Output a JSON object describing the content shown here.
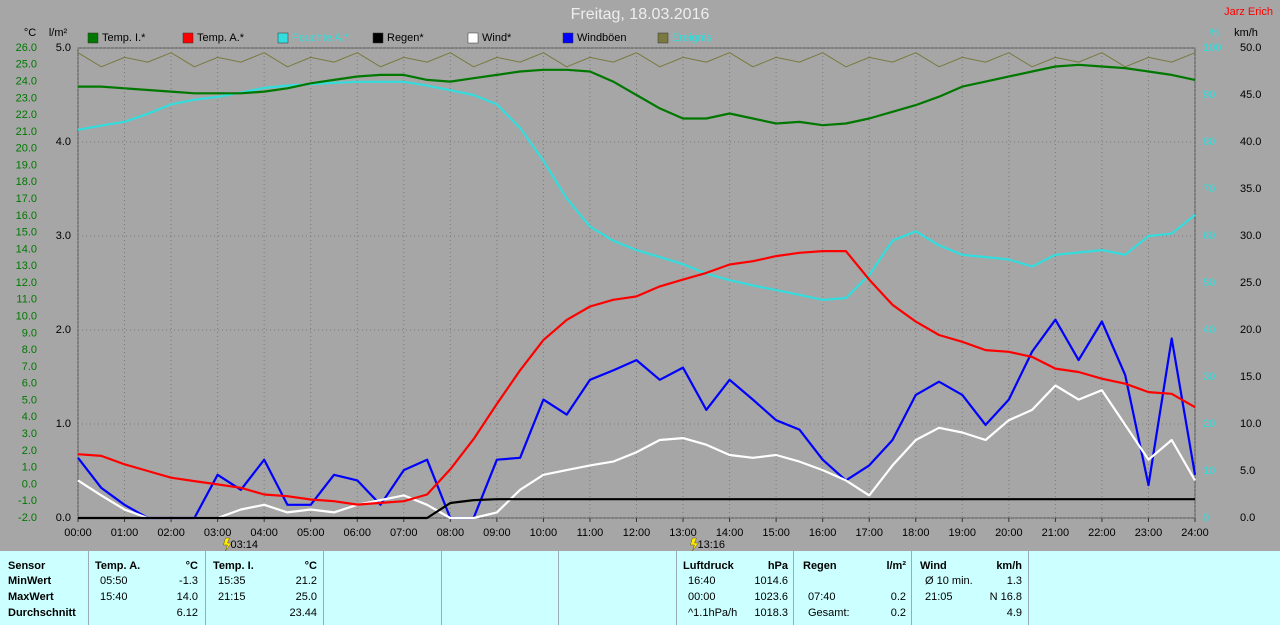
{
  "chart_data": {
    "type": "line",
    "title": "Freitag, 18.03.2016",
    "author": "Jarz Erich",
    "axis_units": {
      "y": "°C",
      "y3": "l/m²",
      "y4": "%",
      "y2": "km/h"
    },
    "x": [
      0,
      0.5,
      1,
      1.5,
      2,
      2.5,
      3,
      3.5,
      4,
      4.5,
      5,
      5.5,
      6,
      6.5,
      7,
      7.5,
      8,
      8.5,
      9,
      9.5,
      10,
      10.5,
      11,
      11.5,
      12,
      12.5,
      13,
      13.5,
      14,
      14.5,
      15,
      15.5,
      16,
      16.5,
      17,
      17.5,
      18,
      18.5,
      19,
      19.5,
      20,
      20.5,
      21,
      21.5,
      22,
      22.5,
      23,
      23.5,
      24
    ],
    "xlim": [
      0,
      24
    ],
    "xticks": [
      {
        "value": 0,
        "label": "00:00"
      },
      {
        "value": 1,
        "label": "01:00"
      },
      {
        "value": 2,
        "label": "02:00"
      },
      {
        "value": 3,
        "label": "03:00"
      },
      {
        "value": 4,
        "label": "04:00"
      },
      {
        "value": 5,
        "label": "05:00"
      },
      {
        "value": 6,
        "label": "06:00"
      },
      {
        "value": 7,
        "label": "07:00"
      },
      {
        "value": 8,
        "label": "08:00"
      },
      {
        "value": 9,
        "label": "09:00"
      },
      {
        "value": 10,
        "label": "10:00"
      },
      {
        "value": 11,
        "label": "11:00"
      },
      {
        "value": 12,
        "label": "12:00"
      },
      {
        "value": 13,
        "label": "13:00"
      },
      {
        "value": 14,
        "label": "14:00"
      },
      {
        "value": 15,
        "label": "15:00"
      },
      {
        "value": 16,
        "label": "16:00"
      },
      {
        "value": 17,
        "label": "17:00"
      },
      {
        "value": 18,
        "label": "18:00"
      },
      {
        "value": 19,
        "label": "19:00"
      },
      {
        "value": 20,
        "label": "20:00"
      },
      {
        "value": 21,
        "label": "21:00"
      },
      {
        "value": 22,
        "label": "22:00"
      },
      {
        "value": 23,
        "label": "23:00"
      },
      {
        "value": 24,
        "label": "24:00"
      }
    ],
    "ylim": [
      -2,
      26
    ],
    "yticks": [
      {
        "value": 26,
        "label": "26.0"
      },
      {
        "value": 25,
        "label": "25.0"
      },
      {
        "value": 24,
        "label": "24.0"
      },
      {
        "value": 23,
        "label": "23.0"
      },
      {
        "value": 22,
        "label": "22.0"
      },
      {
        "value": 21,
        "label": "21.0"
      },
      {
        "value": 20,
        "label": "20.0"
      },
      {
        "value": 19,
        "label": "19.0"
      },
      {
        "value": 18,
        "label": "18.0"
      },
      {
        "value": 17,
        "label": "17.0"
      },
      {
        "value": 16,
        "label": "16.0"
      },
      {
        "value": 15,
        "label": "15.0"
      },
      {
        "value": 14,
        "label": "14.0"
      },
      {
        "value": 13,
        "label": "13.0"
      },
      {
        "value": 12,
        "label": "12.0"
      },
      {
        "value": 11,
        "label": "11.0"
      },
      {
        "value": 10,
        "label": "10.0"
      },
      {
        "value": 9,
        "label": "9.0"
      },
      {
        "value": 8,
        "label": "8.0"
      },
      {
        "value": 7,
        "label": "7.0"
      },
      {
        "value": 6,
        "label": "6.0"
      },
      {
        "value": 5,
        "label": "5.0"
      },
      {
        "value": 4,
        "label": "4.0"
      },
      {
        "value": 3,
        "label": "3.0"
      },
      {
        "value": 2,
        "label": "2.0"
      },
      {
        "value": 1,
        "label": "1.0"
      },
      {
        "value": 0,
        "label": "0.0"
      },
      {
        "value": -1,
        "label": "-1.0"
      },
      {
        "value": -2,
        "label": "-2.0"
      }
    ],
    "y2lim": [
      0,
      50
    ],
    "y2ticks": [
      {
        "value": 50,
        "label": "50.0"
      },
      {
        "value": 45,
        "label": "45.0"
      },
      {
        "value": 40,
        "label": "40.0"
      },
      {
        "value": 35,
        "label": "35.0"
      },
      {
        "value": 30,
        "label": "30.0"
      },
      {
        "value": 25,
        "label": "25.0"
      },
      {
        "value": 20,
        "label": "20.0"
      },
      {
        "value": 15,
        "label": "15.0"
      },
      {
        "value": 10,
        "label": "10.0"
      },
      {
        "value": 5,
        "label": "5.0"
      },
      {
        "value": 0,
        "label": "0.0"
      }
    ],
    "y3lim": [
      0,
      5
    ],
    "y3ticks": [
      {
        "value": 5,
        "label": "5.0"
      },
      {
        "value": 4,
        "label": "4.0"
      },
      {
        "value": 3,
        "label": "3.0"
      },
      {
        "value": 2,
        "label": "2.0"
      },
      {
        "value": 1,
        "label": "1.0"
      },
      {
        "value": 0,
        "label": "0.0"
      }
    ],
    "y4lim": [
      0,
      100
    ],
    "y4ticks": [
      100,
      90,
      80,
      70,
      60,
      50,
      40,
      30,
      20,
      10,
      0
    ],
    "grid": true,
    "legend": "top",
    "annotations": [
      {
        "x": 3.233,
        "label": "03:14"
      },
      {
        "x": 13.267,
        "label": "13:16"
      }
    ],
    "series": [
      {
        "name": "Temp. I.*",
        "color": "#007800",
        "axis": "y",
        "values": [
          23.7,
          23.7,
          23.6,
          23.5,
          23.4,
          23.3,
          23.3,
          23.3,
          23.4,
          23.6,
          23.9,
          24.1,
          24.3,
          24.4,
          24.4,
          24.1,
          24.0,
          24.2,
          24.4,
          24.6,
          24.7,
          24.7,
          24.6,
          24.0,
          23.2,
          22.4,
          21.8,
          21.8,
          22.1,
          21.8,
          21.5,
          21.6,
          21.4,
          21.5,
          21.8,
          22.2,
          22.6,
          23.1,
          23.7,
          24.0,
          24.3,
          24.6,
          24.9,
          25.0,
          24.9,
          24.8,
          24.6,
          24.4,
          24.1
        ]
      },
      {
        "name": "Temp. A.*",
        "color": "#ff0000",
        "axis": "y",
        "values": [
          1.8,
          1.7,
          1.2,
          0.8,
          0.4,
          0.2,
          0.0,
          -0.2,
          -0.6,
          -0.7,
          -0.9,
          -1.0,
          -1.2,
          -1.1,
          -1.0,
          -0.6,
          0.9,
          2.7,
          4.8,
          6.8,
          8.6,
          9.8,
          10.6,
          11.0,
          11.2,
          11.8,
          12.2,
          12.6,
          13.1,
          13.3,
          13.6,
          13.8,
          13.9,
          13.9,
          12.2,
          10.7,
          9.7,
          8.9,
          8.5,
          8.0,
          7.9,
          7.6,
          6.9,
          6.7,
          6.3,
          6.0,
          5.5,
          5.4,
          4.6
        ]
      },
      {
        "name": "Feuchte A.*",
        "color": "#33dddd",
        "axis": "y4",
        "values": [
          82.6,
          83.5,
          84.3,
          86,
          88,
          89,
          89.6,
          90.5,
          91.5,
          92,
          92.3,
          92.6,
          92.8,
          92.8,
          92.8,
          92,
          91,
          90,
          88,
          83,
          76,
          68,
          62,
          59,
          57,
          55.5,
          54,
          52,
          50.6,
          49.5,
          48.5,
          47.5,
          46.4,
          46.8,
          51.7,
          59,
          61,
          58,
          56,
          55.5,
          55,
          53.5,
          56,
          56.5,
          57,
          56,
          60,
          60.5,
          64.5
        ]
      },
      {
        "name": "Regen*",
        "color": "#000000",
        "axis": "y3",
        "values": [
          0,
          0,
          0,
          0,
          0,
          0,
          0,
          0,
          0,
          0,
          0,
          0,
          0,
          0,
          0,
          0,
          0.16,
          0.19,
          0.2,
          0.2,
          0.2,
          0.2,
          0.2,
          0.2,
          0.2,
          0.2,
          0.2,
          0.2,
          0.2,
          0.2,
          0.2,
          0.2,
          0.2,
          0.2,
          0.2,
          0.2,
          0.2,
          0.2,
          0.2,
          0.2,
          0.2,
          0.2,
          0.2,
          0.2,
          0.2,
          0.2,
          0.2,
          0.2,
          0.2
        ]
      },
      {
        "name": "Wind*",
        "color": "#ffffff",
        "axis": "y2",
        "values": [
          4.0,
          2.4,
          0.9,
          0,
          0,
          0,
          0,
          0.9,
          1.4,
          0.6,
          0.9,
          0.6,
          1.4,
          1.9,
          2.4,
          1.4,
          0,
          0,
          0.6,
          3.0,
          4.6,
          5.1,
          5.6,
          6.0,
          7.0,
          8.3,
          8.5,
          7.8,
          6.7,
          6.4,
          6.7,
          6.0,
          5.1,
          4.0,
          2.4,
          5.6,
          8.3,
          9.6,
          9.1,
          8.3,
          10.4,
          11.5,
          14.1,
          12.6,
          13.6,
          9.9,
          6.2,
          8.3,
          4.0
        ]
      },
      {
        "name": "Windböen",
        "color": "#0000ff",
        "axis": "y2",
        "values": [
          6.4,
          3.2,
          1.4,
          0,
          0,
          0,
          4.6,
          3.0,
          6.2,
          1.4,
          1.4,
          4.6,
          4.0,
          1.4,
          5.1,
          6.2,
          0,
          0,
          6.2,
          6.4,
          12.6,
          11.0,
          14.7,
          15.7,
          16.8,
          14.7,
          16.0,
          11.5,
          14.7,
          12.6,
          10.4,
          9.4,
          6.2,
          4.0,
          5.6,
          8.3,
          13.1,
          14.5,
          13.1,
          9.9,
          12.6,
          17.7,
          21.1,
          16.8,
          20.9,
          15.2,
          3.5,
          19.1,
          4.6
        ]
      },
      {
        "name": "Ereignis",
        "color": "#7a7a40",
        "axis": "y4",
        "values": [
          99,
          96,
          98,
          97,
          99,
          96,
          98,
          97,
          99,
          96,
          98,
          97,
          99,
          96,
          98,
          97,
          99,
          96,
          98,
          97,
          99,
          96,
          98,
          97,
          99,
          96,
          98,
          97,
          99,
          96,
          98,
          97,
          99,
          96,
          98,
          97,
          99,
          96,
          98,
          97,
          99,
          96,
          98,
          97,
          99,
          96,
          98,
          97,
          99
        ]
      }
    ]
  },
  "stats": {
    "row_labels": [
      "Sensor",
      "MinWert",
      "MaxWert",
      "Durchschnitt"
    ],
    "groups": [
      {
        "title": "Temp. A.",
        "unit": "°C",
        "rows": [
          {
            "time": "05:50",
            "value": "-1.3"
          },
          {
            "time": "15:40",
            "value": "14.0"
          },
          {
            "value": "6.12"
          }
        ]
      },
      {
        "title": "Temp. I.",
        "unit": "°C",
        "rows": [
          {
            "time": "15:35",
            "value": "21.2"
          },
          {
            "time": "21:15",
            "value": "25.0"
          },
          {
            "value": "23.44"
          }
        ]
      },
      {
        "title": "Luftdruck",
        "unit": "hPa",
        "rows": [
          {
            "time": "16:40",
            "value": "1014.6"
          },
          {
            "time": "00:00",
            "value": "1023.6"
          },
          {
            "time": "^1.1hPa/h",
            "value": "1018.3"
          }
        ]
      },
      {
        "title": "Regen",
        "unit": "l/m²",
        "rows": [
          {},
          {
            "time": "07:40",
            "value": "0.2"
          },
          {
            "time": "Gesamt:",
            "value": "0.2"
          }
        ]
      },
      {
        "title": "Wind",
        "unit": "km/h",
        "rows": [
          {
            "time": "Ø 10 min.",
            "value": "1.3"
          },
          {
            "time": "21:05",
            "value": "N 16.8"
          },
          {
            "value": "4.9"
          }
        ]
      }
    ]
  }
}
